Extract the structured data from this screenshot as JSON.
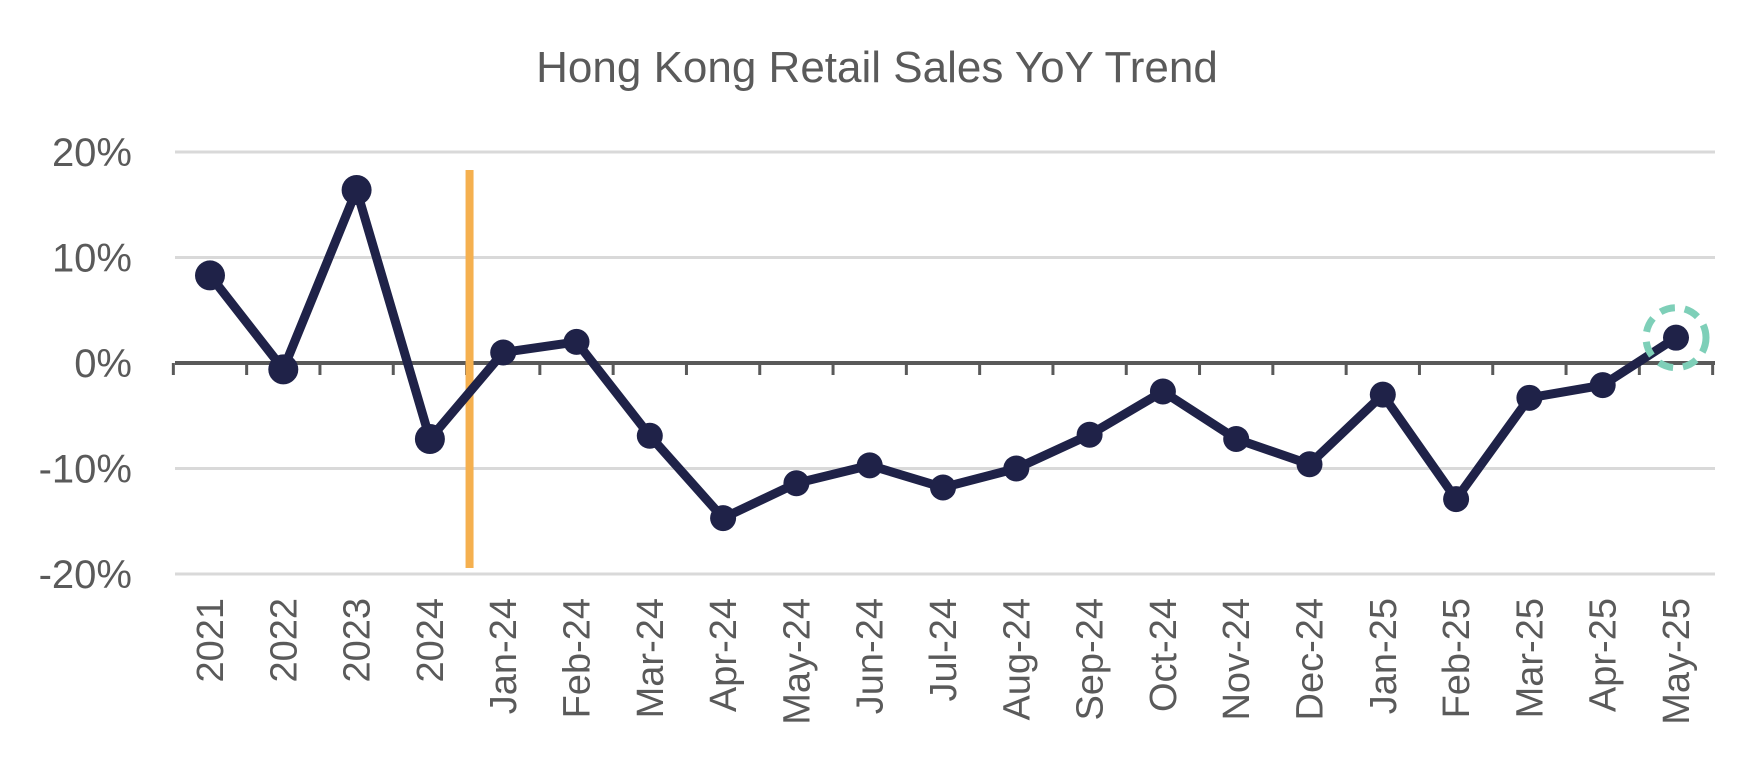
{
  "chart_data": {
    "type": "line",
    "title": "Hong Kong Retail Sales YoY Trend",
    "xlabel": "",
    "ylabel": "",
    "categories": [
      "2021",
      "2022",
      "2023",
      "2024",
      "Jan-24",
      "Feb-24",
      "Mar-24",
      "Apr-24",
      "May-24",
      "Jun-24",
      "Jul-24",
      "Aug-24",
      "Sep-24",
      "Oct-24",
      "Nov-24",
      "Dec-24",
      "Jan-25",
      "Feb-25",
      "Mar-25",
      "Apr-25",
      "May-25"
    ],
    "series": [
      {
        "values": [
          8.3,
          -0.6,
          16.4,
          -7.2,
          1.0,
          2.0,
          -6.9,
          -14.7,
          -11.4,
          -9.7,
          -11.8,
          -10.0,
          -6.8,
          -2.7,
          -7.2,
          -9.6,
          -3.0,
          -12.9,
          -3.3,
          -2.1,
          2.4
        ]
      }
    ],
    "ylim": [
      -20,
      20
    ],
    "yticks": [
      "-20%",
      "-10%",
      "0%",
      "10%",
      "20%"
    ],
    "ytick_values": [
      -20,
      -10,
      0,
      10,
      20
    ],
    "grid": true,
    "legend": "none",
    "annotations": {
      "separator_after": "2024",
      "highlighted_point": "May-25"
    },
    "colors": {
      "line": "#1f2248",
      "separator": "#f5b04f",
      "highlight_ring": "#7ecfb8",
      "grid": "#d9d9d9",
      "axis": "#595959",
      "text": "#5a5a5a"
    }
  }
}
